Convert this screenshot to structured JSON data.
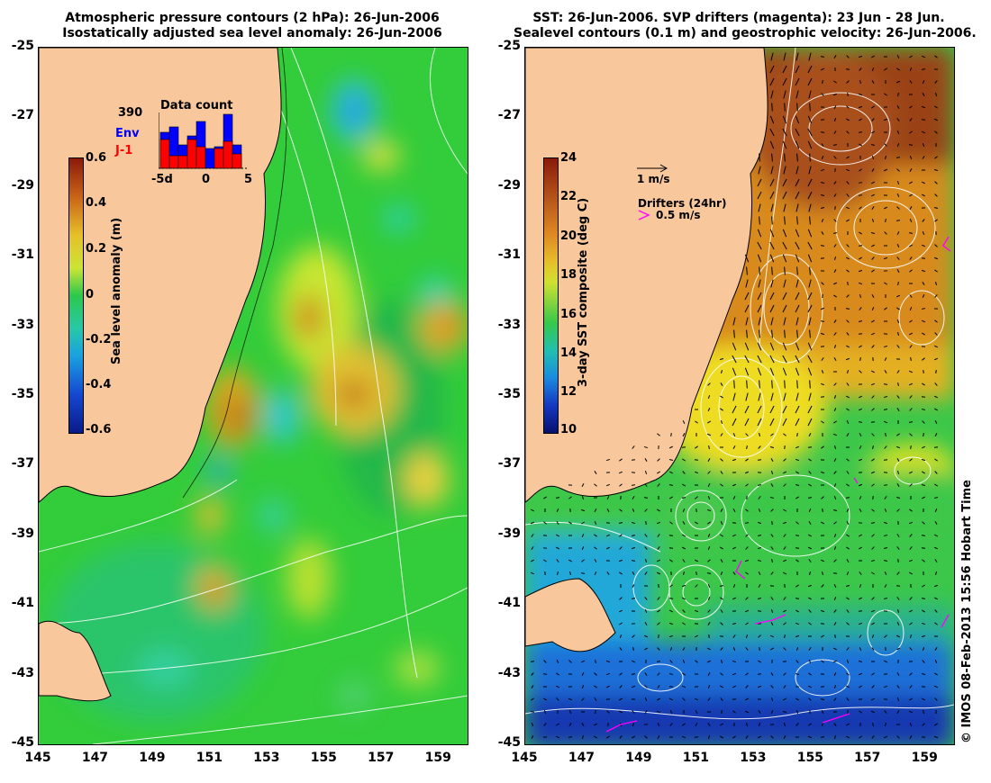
{
  "left_panel": {
    "title_line1": "Atmospheric pressure contours (2 hPa): 26-Jun-2006",
    "title_line2": "Isostatically adjusted sea level anomaly: 26-Jun-2006",
    "colorbar": {
      "label": "Sea level anomaly (m)",
      "ticks": [
        "0.6",
        "0.4",
        "0.2",
        "0",
        "-0.2",
        "-0.4",
        "-0.6"
      ]
    },
    "inset": {
      "count": "390",
      "title": "Data count",
      "legend_env": "Env",
      "legend_j1": "J-1",
      "xticks": [
        "-5d",
        "0",
        "5"
      ],
      "env_color": "#0000ff",
      "j1_color": "#ff0000"
    }
  },
  "right_panel": {
    "title_line1": "SST: 26-Jun-2006. SVP drifters (magenta): 23 Jun - 28 Jun.",
    "title_line2": "Sealevel contours (0.1 m) and geostrophic velocity: 26-Jun-2006.",
    "colorbar": {
      "label": "3-day SST composite (deg C)",
      "ticks": [
        "24",
        "22",
        "20",
        "18",
        "16",
        "14",
        "12",
        "10"
      ]
    },
    "vector_key": "1 m/s",
    "drifters_label": "Drifters (24hr)",
    "drifter_key": "0.5 m/s",
    "drifter_color": "#ff00ff"
  },
  "axes": {
    "y_ticks": [
      "-25",
      "-27",
      "-29",
      "-31",
      "-33",
      "-35",
      "-37",
      "-39",
      "-41",
      "-43",
      "-45"
    ],
    "x_ticks": [
      "145",
      "147",
      "149",
      "151",
      "153",
      "155",
      "157",
      "159"
    ]
  },
  "credit": "© IMOS 08-Feb-2013 15:56 Hobart Time",
  "colors": {
    "land": "#f8c79c",
    "coast": "#000000"
  }
}
